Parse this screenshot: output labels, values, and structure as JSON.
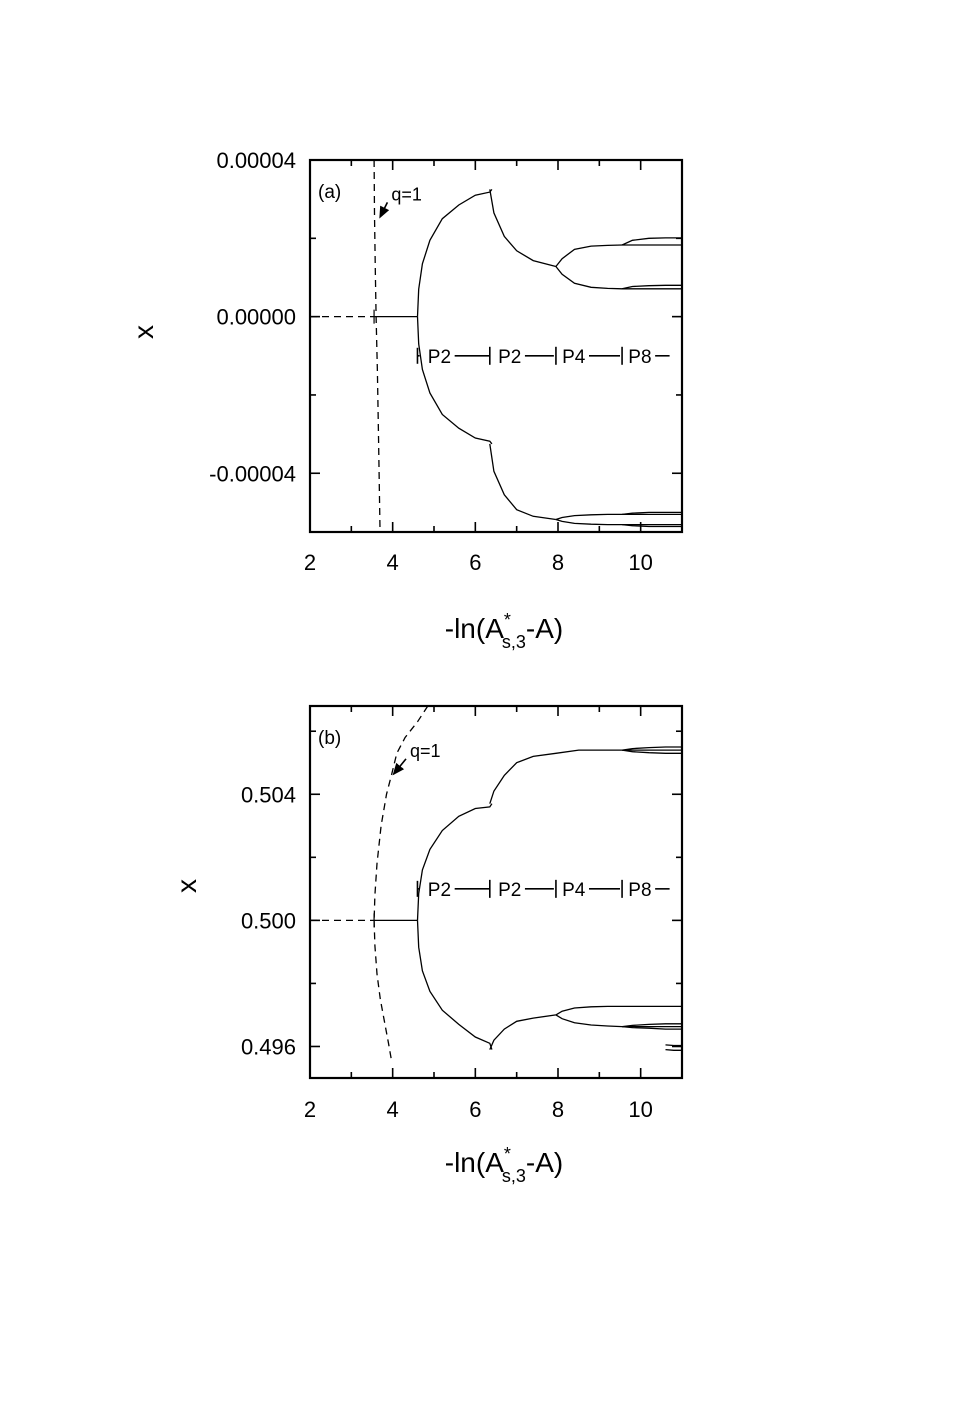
{
  "chart_data": [
    {
      "type": "line",
      "panel_label": "(a)",
      "xlabel": "-ln(A*s,3-A)",
      "xlabel_parts": {
        "prefix": "-ln(A",
        "sup": "*",
        "sub": "s,3",
        "suffix": "-A)"
      },
      "ylabel": "x",
      "xlim": [
        2,
        11
      ],
      "ylim": [
        -5.5e-05,
        4e-05
      ],
      "xticks": [
        2,
        4,
        6,
        8,
        10
      ],
      "xtick_labels": [
        "2",
        "4",
        "6",
        "8",
        "10"
      ],
      "yticks": [
        -4e-05,
        0.0,
        4e-05
      ],
      "ytick_labels": [
        "-0.00004",
        "0.00000",
        "0.00004"
      ],
      "grid": false,
      "legend": "none",
      "annotation": {
        "text": "q=1",
        "x_text": 4.55,
        "y_text": 3.02e-05,
        "x_tip": 3.65,
        "y_tip": 2.55e-05
      },
      "period_labels": [
        {
          "text": "P2",
          "x": 4.85
        },
        {
          "text": "P2",
          "x": 6.55
        },
        {
          "text": "P4",
          "x": 8.1
        },
        {
          "text": "P8",
          "x": 9.7
        }
      ],
      "period_row_y": -1e-05,
      "period_markers_x": [
        4.6,
        6.35,
        7.95,
        9.55
      ],
      "period_line_end_x": 10.7,
      "series": [
        {
          "style": "dashed",
          "x": [
            3.55,
            3.56,
            3.58,
            3.6,
            3.63,
            3.66,
            3.7
          ],
          "y": [
            4e-05,
            2.6e-05,
            1.2e-05,
            0.0,
            -1.4e-05,
            -3.2e-05,
            -5.9e-05
          ]
        },
        {
          "style": "dashed",
          "x": [
            2.0,
            3.55
          ],
          "y": [
            0.0,
            0.0
          ]
        },
        {
          "style": "solid",
          "x": [
            3.55,
            4.6
          ],
          "y": [
            0.0,
            0.0
          ]
        },
        {
          "style": "solid",
          "x": [
            4.6,
            4.63,
            4.72,
            4.9,
            5.2,
            5.6,
            6.0,
            6.35,
            6.4
          ],
          "y": [
            0.0,
            7e-06,
            1.35e-05,
            1.95e-05,
            2.5e-05,
            2.85e-05,
            3.1e-05,
            3.18e-05,
            3.25e-05
          ]
        },
        {
          "style": "solid",
          "x": [
            4.6,
            4.63,
            4.72,
            4.9,
            5.2,
            5.6,
            6.0,
            6.35,
            6.4
          ],
          "y": [
            0.0,
            -7e-06,
            -1.35e-05,
            -1.95e-05,
            -2.5e-05,
            -2.85e-05,
            -3.1e-05,
            -3.18e-05,
            -3.25e-05
          ]
        },
        {
          "style": "solid",
          "x": [
            6.35,
            6.45,
            6.7,
            7.0,
            7.4,
            7.95
          ],
          "y": [
            3.25e-05,
            2.65e-05,
            2.05e-05,
            1.68e-05,
            1.43e-05,
            1.28e-05
          ]
        },
        {
          "style": "solid",
          "x": [
            6.35,
            6.45,
            6.7,
            7.0,
            7.4,
            7.95
          ],
          "y": [
            -3.25e-05,
            -3.95e-05,
            -4.55e-05,
            -4.93e-05,
            -5.1e-05,
            -5.18e-05
          ]
        },
        {
          "style": "solid",
          "x": [
            7.95,
            8.1,
            8.4,
            8.8,
            9.2,
            9.55,
            10.0,
            11.0
          ],
          "y": [
            1.28e-05,
            1.48e-05,
            1.72e-05,
            1.8e-05,
            1.82e-05,
            1.83e-05,
            1.83e-05,
            1.83e-05
          ]
        },
        {
          "style": "solid",
          "x": [
            7.95,
            8.1,
            8.4,
            8.8,
            9.2,
            9.55,
            10.0,
            11.0
          ],
          "y": [
            1.28e-05,
            1.08e-05,
            8.5e-06,
            7.5e-06,
            7.2e-06,
            7.1e-06,
            7.1e-06,
            7.1e-06
          ]
        },
        {
          "style": "solid",
          "x": [
            9.55,
            9.8,
            10.2,
            10.6,
            11.0
          ],
          "y": [
            1.83e-05,
            1.95e-05,
            2e-05,
            2.01e-05,
            2.01e-05
          ]
        },
        {
          "style": "solid",
          "x": [
            9.55,
            9.8,
            10.2,
            10.6,
            11.0
          ],
          "y": [
            7.1e-06,
            7.7e-06,
            7.9e-06,
            8e-06,
            8e-06
          ]
        },
        {
          "style": "solid",
          "x": [
            7.95,
            8.1,
            8.4,
            8.8,
            9.2,
            9.55,
            10.0,
            11.0
          ],
          "y": [
            -5.18e-05,
            -5.13e-05,
            -5.08e-05,
            -5.06e-05,
            -5.05e-05,
            -5.05e-05,
            -5.05e-05,
            -5.05e-05
          ]
        },
        {
          "style": "solid",
          "x": [
            7.95,
            8.1,
            8.4,
            8.8,
            9.2,
            9.55,
            10.0,
            11.0
          ],
          "y": [
            -5.18e-05,
            -5.23e-05,
            -5.28e-05,
            -5.3e-05,
            -5.31e-05,
            -5.31e-05,
            -5.31e-05,
            -5.31e-05
          ]
        },
        {
          "style": "solid",
          "x": [
            9.55,
            9.8,
            10.2,
            10.6,
            11.0
          ],
          "y": [
            -5.05e-05,
            -5.02e-05,
            -5e-05,
            -5e-05,
            -5e-05
          ]
        },
        {
          "style": "solid",
          "x": [
            9.55,
            9.8,
            10.2,
            10.6,
            11.0
          ],
          "y": [
            -5.31e-05,
            -5.34e-05,
            -5.36e-05,
            -5.36e-05,
            -5.36e-05
          ]
        }
      ]
    },
    {
      "type": "line",
      "panel_label": "(b)",
      "xlabel": "-ln(A*s,3-A)",
      "xlabel_parts": {
        "prefix": "-ln(A",
        "sup": "*",
        "sub": "s,3",
        "suffix": "-A)"
      },
      "ylabel": "x",
      "xlim": [
        2,
        11
      ],
      "ylim": [
        0.495,
        0.5068
      ],
      "xticks": [
        2,
        4,
        6,
        8,
        10
      ],
      "xtick_labels": [
        "2",
        "4",
        "6",
        "8",
        "10"
      ],
      "yticks": [
        0.496,
        0.5,
        0.504
      ],
      "ytick_labels": [
        "0.496",
        "0.500",
        "0.504"
      ],
      "grid": false,
      "legend": "none",
      "annotation": {
        "text": "q=1",
        "x_text": 5.0,
        "y_text": 0.50525,
        "x_tip": 3.98,
        "y_tip": 0.50465
      },
      "period_labels": [
        {
          "text": "P2",
          "x": 4.85
        },
        {
          "text": "P2",
          "x": 6.55
        },
        {
          "text": "P4",
          "x": 8.1
        },
        {
          "text": "P8",
          "x": 9.7
        }
      ],
      "period_row_y": 0.501,
      "period_markers_x": [
        4.6,
        6.35,
        7.95,
        9.55
      ],
      "period_line_end_x": 10.7,
      "series": [
        {
          "style": "dashed",
          "x": [
            4.85,
            4.6,
            4.3,
            4.1,
            3.98,
            3.85,
            3.72,
            3.62,
            3.57,
            3.55
          ],
          "y": [
            0.5068,
            0.5063,
            0.5058,
            0.5053,
            0.50465,
            0.504,
            0.503,
            0.5018,
            0.5008,
            0.5
          ]
        },
        {
          "style": "dashed",
          "x": [
            3.55,
            3.57,
            3.62,
            3.7,
            3.8,
            3.9,
            3.98
          ],
          "y": [
            0.5,
            0.4992,
            0.4983,
            0.4975,
            0.4968,
            0.4961,
            0.4955
          ]
        },
        {
          "style": "dashed",
          "x": [
            2.0,
            3.55
          ],
          "y": [
            0.5,
            0.5
          ]
        },
        {
          "style": "solid",
          "x": [
            3.55,
            4.6
          ],
          "y": [
            0.5,
            0.5
          ]
        },
        {
          "style": "solid",
          "x": [
            4.6,
            4.63,
            4.72,
            4.9,
            5.2,
            5.6,
            6.0,
            6.35,
            6.4
          ],
          "y": [
            0.5,
            0.50085,
            0.5016,
            0.50225,
            0.50285,
            0.5033,
            0.50355,
            0.5036,
            0.5037
          ]
        },
        {
          "style": "solid",
          "x": [
            4.6,
            4.63,
            4.72,
            4.9,
            5.2,
            5.6,
            6.0,
            6.35,
            6.4
          ],
          "y": [
            0.5,
            0.49915,
            0.4984,
            0.49775,
            0.49715,
            0.4967,
            0.4963,
            0.4961,
            0.4959
          ]
        },
        {
          "style": "solid",
          "x": [
            6.35,
            6.45,
            6.7,
            7.0,
            7.4,
            7.95,
            8.5,
            9.0,
            9.55,
            10.0,
            11.0
          ],
          "y": [
            0.5037,
            0.5041,
            0.5046,
            0.505,
            0.5052,
            0.5053,
            0.5054,
            0.5054,
            0.5054,
            0.5054,
            0.5054
          ]
        },
        {
          "style": "solid",
          "x": [
            9.55,
            9.8,
            10.2,
            10.6,
            11.0
          ],
          "y": [
            0.5054,
            0.50545,
            0.50548,
            0.5055,
            0.5055
          ]
        },
        {
          "style": "solid",
          "x": [
            9.55,
            9.8,
            10.2,
            10.6,
            11.0
          ],
          "y": [
            0.5054,
            0.50535,
            0.50532,
            0.5053,
            0.5053
          ]
        },
        {
          "style": "solid",
          "x": [
            6.35,
            6.45,
            6.7,
            7.0,
            7.4,
            7.95
          ],
          "y": [
            0.4959,
            0.4962,
            0.49655,
            0.4968,
            0.4969,
            0.497
          ]
        },
        {
          "style": "solid",
          "x": [
            7.95,
            8.1,
            8.4,
            8.8,
            9.2,
            9.55,
            10.0,
            11.0
          ],
          "y": [
            0.497,
            0.49712,
            0.49722,
            0.49726,
            0.49727,
            0.49727,
            0.49727,
            0.49727
          ]
        },
        {
          "style": "solid",
          "x": [
            7.95,
            8.1,
            8.4,
            8.8,
            9.2,
            9.55,
            10.0,
            11.0
          ],
          "y": [
            0.497,
            0.49688,
            0.49675,
            0.49668,
            0.49665,
            0.49663,
            0.49663,
            0.49663
          ]
        },
        {
          "style": "solid",
          "x": [
            9.55,
            9.8,
            10.2,
            10.6,
            11.0
          ],
          "y": [
            0.49663,
            0.4966,
            0.49658,
            0.49655,
            0.49655
          ]
        },
        {
          "style": "solid",
          "x": [
            9.55,
            9.8,
            10.2,
            10.6,
            11.0
          ],
          "y": [
            0.49663,
            0.49667,
            0.4967,
            0.49672,
            0.49672
          ]
        },
        {
          "style": "solid",
          "x": [
            10.6,
            10.8,
            11.0
          ],
          "y": [
            0.49605,
            0.49603,
            0.49603
          ]
        },
        {
          "style": "solid",
          "x": [
            10.6,
            10.8,
            11.0
          ],
          "y": [
            0.4959,
            0.49588,
            0.49588
          ]
        }
      ]
    }
  ]
}
